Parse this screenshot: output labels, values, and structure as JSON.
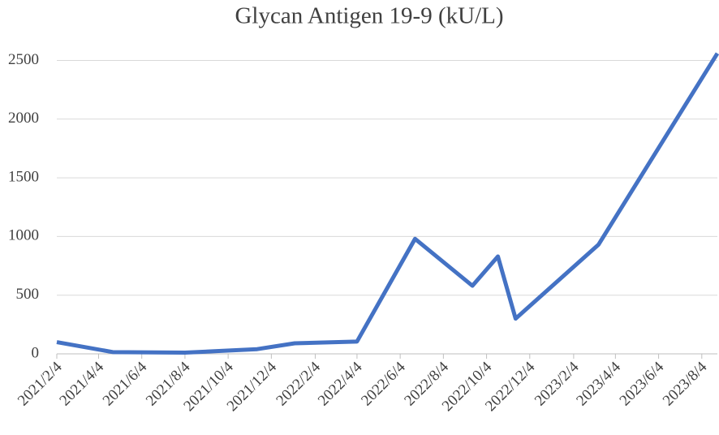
{
  "chart_data": {
    "type": "line",
    "title": "Glycan Antigen 19-9  (kU/L)",
    "x": [
      "2021/2/4",
      "2021/4/24",
      "2021/8/4",
      "2021/11/14",
      "2022/1/6",
      "2022/4/4",
      "2022/6/25",
      "2022/9/14",
      "2022/10/20",
      "2022/11/14",
      "2023/3/11",
      "2023/8/26"
    ],
    "series": [
      {
        "name": "Glycan Antigen 19-9",
        "color": "#4472c4",
        "values": [
          100,
          15,
          10,
          40,
          90,
          105,
          980,
          580,
          830,
          300,
          930,
          2560
        ]
      }
    ],
    "xlim": [
      "2021/2/4",
      "2023/8/26"
    ],
    "xticks": [
      "2021/2/4",
      "2021/4/4",
      "2021/6/4",
      "2021/8/4",
      "2021/10/4",
      "2021/12/4",
      "2022/2/4",
      "2022/4/4",
      "2022/6/4",
      "2022/8/4",
      "2022/10/4",
      "2022/12/4",
      "2023/2/4",
      "2023/4/4",
      "2023/6/4",
      "2023/8/4"
    ],
    "ylim": [
      0,
      2600
    ],
    "yticks": [
      0,
      500,
      1000,
      1500,
      2000,
      2500
    ],
    "grid": true
  }
}
